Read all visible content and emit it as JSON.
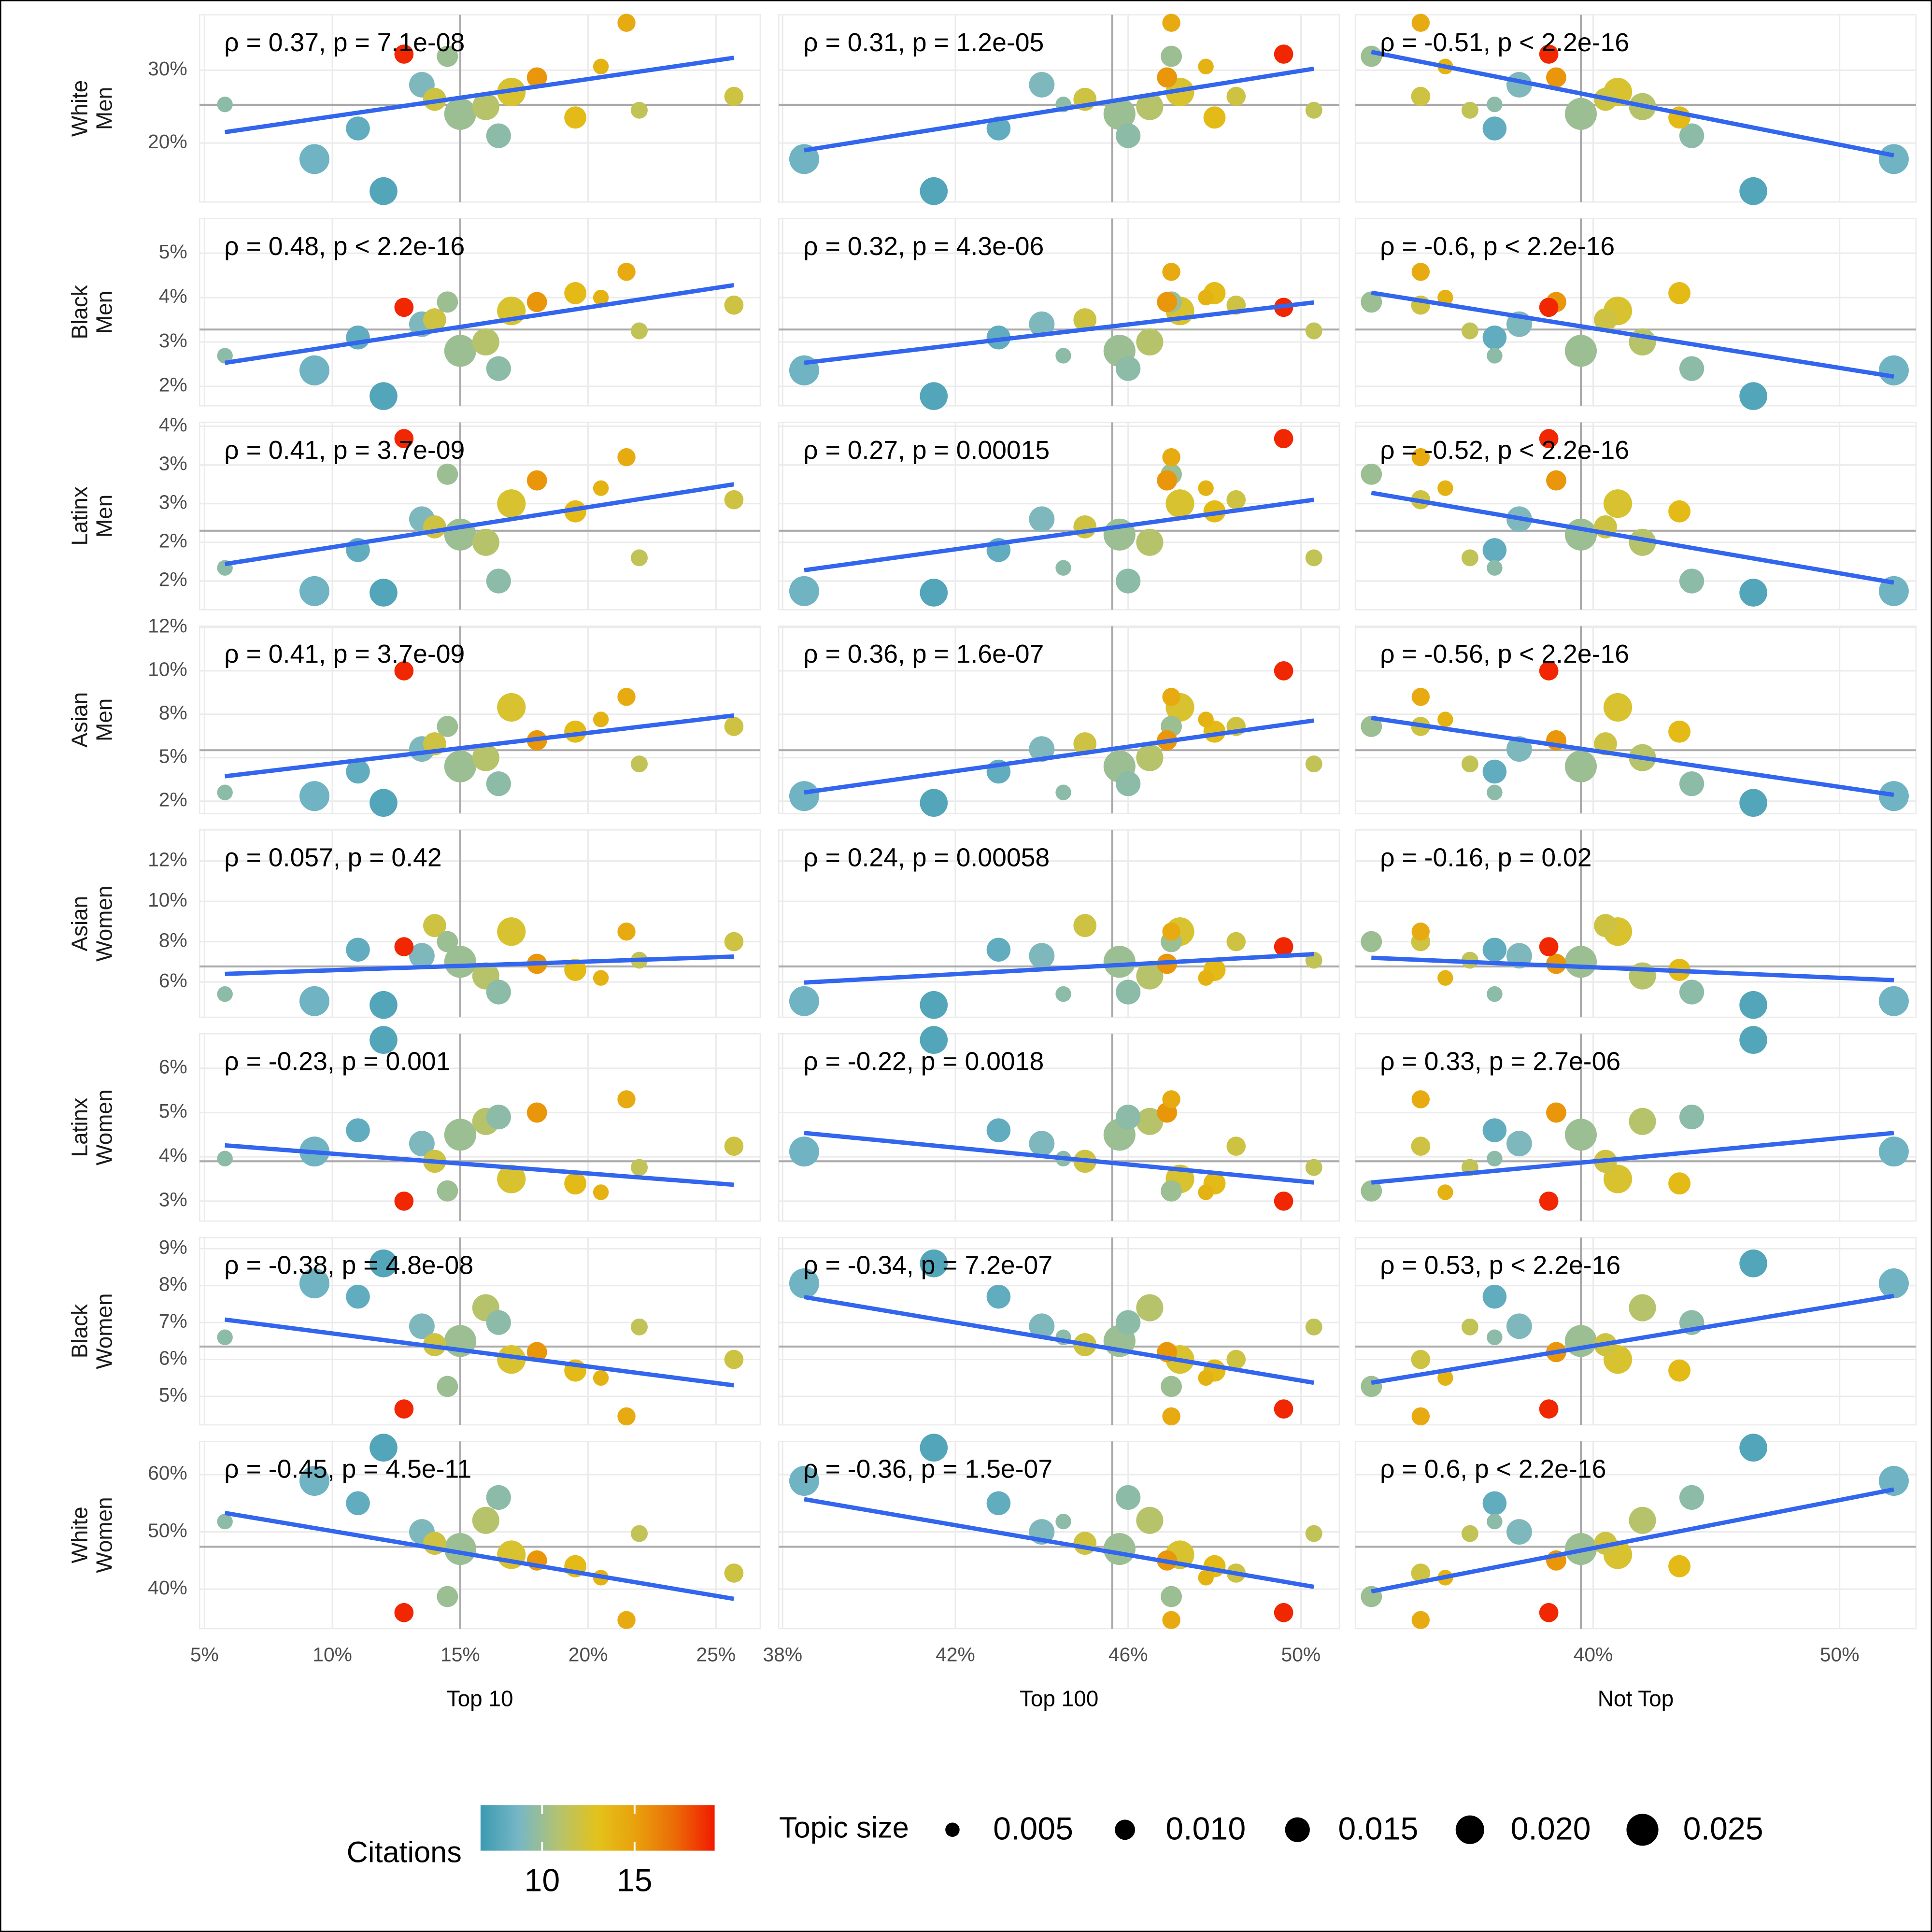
{
  "chart_data": {
    "type": "scatter",
    "columns": [
      {
        "name": "Top 10",
        "xlim": [
          4.81,
          26.73
        ],
        "mean": 15.0,
        "xticks": [
          {
            "value": 5,
            "label": "5%"
          },
          {
            "value": 10,
            "label": "10%"
          },
          {
            "value": 15,
            "label": "15%"
          },
          {
            "value": 20,
            "label": "20%"
          },
          {
            "value": 25,
            "label": "25%"
          }
        ],
        "x": [
          9.3,
          12.8,
          5.8,
          25.7,
          22.0,
          14.5,
          12.0,
          21.5,
          15.0,
          17.0,
          13.5,
          16.0,
          19.5,
          11.0,
          18.0,
          14.0,
          20.5,
          16.5
        ]
      },
      {
        "name": "Top 100",
        "xlim": [
          37.91,
          50.89
        ],
        "mean": 45.63,
        "xticks": [
          {
            "value": 38,
            "label": "38%"
          },
          {
            "value": 42,
            "label": "42%"
          },
          {
            "value": 46,
            "label": "46%"
          },
          {
            "value": 50,
            "label": "50%"
          }
        ],
        "x": [
          38.5,
          49.6,
          44.5,
          48.5,
          50.3,
          47.0,
          41.5,
          47.0,
          45.8,
          47.2,
          44.0,
          46.5,
          48.0,
          43.0,
          46.9,
          45.0,
          47.8,
          46.0
        ]
      },
      {
        "name": "Not Top",
        "xlim": [
          30.35,
          53.1
        ],
        "mean": 39.5,
        "xticks": [
          {
            "value": 40,
            "label": "40%"
          },
          {
            "value": 50,
            "label": "50%"
          }
        ],
        "x": [
          52.2,
          38.2,
          36.0,
          33.0,
          35.0,
          31.0,
          46.5,
          33.0,
          39.5,
          41.0,
          37.0,
          42.0,
          43.5,
          36.0,
          38.5,
          40.5,
          34.0,
          44.0
        ]
      }
    ],
    "rows": [
      {
        "name": "White Men",
        "ylim": [
          11.9,
          37.6
        ],
        "mean": 25.25,
        "yticks": [
          {
            "value": 20,
            "label": "20%"
          },
          {
            "value": 30,
            "label": "30%"
          }
        ],
        "values": [
          17.8,
          32.2,
          25.3,
          26.4,
          24.5,
          31.9,
          13.4,
          36.5,
          24,
          27,
          28,
          25,
          23.5,
          22,
          29,
          26,
          30.5,
          21
        ],
        "panels": [
          {
            "annotation": "ρ = 0.37, p = 7.1e-08",
            "fit": [
              21.5,
              31.7
            ]
          },
          {
            "annotation": "ρ = 0.31, p = 1.2e-05",
            "fit": [
              19.0,
              30.2
            ]
          },
          {
            "annotation": "ρ = -0.51, p < 2.2e-16",
            "fit": [
              32.5,
              18.3
            ]
          }
        ]
      },
      {
        "name": "Black Men",
        "ylim": [
          1.56,
          5.78
        ],
        "mean": 3.28,
        "yticks": [
          {
            "value": 2,
            "label": "2%"
          },
          {
            "value": 3,
            "label": "3%"
          },
          {
            "value": 4,
            "label": "4%"
          },
          {
            "value": 5,
            "label": "5%"
          }
        ],
        "values": [
          2.36,
          3.78,
          2.69,
          3.83,
          3.25,
          3.9,
          1.78,
          4.58,
          2.8,
          3.7,
          3.4,
          3.0,
          4.1,
          3.1,
          3.9,
          3.5,
          4.0,
          2.4
        ],
        "panels": [
          {
            "annotation": "ρ = 0.48, p < 2.2e-16",
            "fit": [
              2.53,
              4.28
            ]
          },
          {
            "annotation": "ρ = 0.32, p = 4.3e-06",
            "fit": [
              2.53,
              3.89
            ]
          },
          {
            "annotation": "ρ = -0.6, p < 2.2e-16",
            "fit": [
              4.11,
              2.22
            ]
          }
        ]
      },
      {
        "name": "Latinx Men",
        "ylim": [
          1.13,
          3.55
        ],
        "mean": 2.15,
        "yticks": [
          {
            "value": 1.5,
            "label": "2%"
          },
          {
            "value": 2.0,
            "label": "2%"
          },
          {
            "value": 2.5,
            "label": "3%"
          },
          {
            "value": 3.0,
            "label": "3%"
          },
          {
            "value": 3.5,
            "label": "4%"
          }
        ],
        "values": [
          1.37,
          3.34,
          1.67,
          2.55,
          1.8,
          2.88,
          1.35,
          3.1,
          2.1,
          2.5,
          2.3,
          2.0,
          2.4,
          1.9,
          2.8,
          2.2,
          2.7,
          1.5
        ],
        "panels": [
          {
            "annotation": "ρ = 0.41, p = 3.7e-09",
            "fit": [
              1.72,
              2.75
            ]
          },
          {
            "annotation": "ρ = 0.27, p = 0.00015",
            "fit": [
              1.64,
              2.55
            ]
          },
          {
            "annotation": "ρ = -0.52, p < 2.2e-16",
            "fit": [
              2.64,
              1.48
            ]
          }
        ]
      },
      {
        "name": "Asian Men",
        "ylim": [
          1.79,
          12.57
        ],
        "mean": 5.43,
        "yticks": [
          {
            "value": 2.5,
            "label": "2%"
          },
          {
            "value": 5,
            "label": "5%"
          },
          {
            "value": 7.5,
            "label": "8%"
          },
          {
            "value": 10,
            "label": "10%"
          },
          {
            "value": 12.5,
            "label": "12%"
          }
        ],
        "values": [
          2.79,
          10,
          3.0,
          6.8,
          4.64,
          6.8,
          2.4,
          8.5,
          4.5,
          7.9,
          5.5,
          5.0,
          6.5,
          4.2,
          6.0,
          5.8,
          7.2,
          3.5
        ],
        "panels": [
          {
            "annotation": "ρ = 0.41, p = 3.7e-09",
            "fit": [
              3.93,
              7.43
            ]
          },
          {
            "annotation": "ρ = 0.36, p = 1.6e-07",
            "fit": [
              3.0,
              7.14
            ]
          },
          {
            "annotation": "ρ = -0.56, p < 2.2e-16",
            "fit": [
              7.29,
              2.86
            ]
          }
        ]
      },
      {
        "name": "Asian Women",
        "ylim": [
          4.25,
          13.54
        ],
        "mean": 6.77,
        "yticks": [
          {
            "value": 6,
            "label": "6%"
          },
          {
            "value": 8,
            "label": "8%"
          },
          {
            "value": 10,
            "label": "10%"
          },
          {
            "value": 12,
            "label": "12%"
          }
        ],
        "values": [
          5.05,
          7.75,
          5.4,
          8.0,
          7.08,
          8.0,
          4.86,
          8.5,
          7.0,
          8.5,
          7.3,
          6.3,
          6.6,
          7.6,
          6.9,
          8.8,
          6.2,
          5.5
        ],
        "panels": [
          {
            "annotation": "ρ = 0.057, p = 0.42",
            "fit": [
              6.4,
              7.26
            ]
          },
          {
            "annotation": "ρ = 0.24, p = 0.00058",
            "fit": [
              5.97,
              7.38
            ]
          },
          {
            "annotation": "ρ = -0.16, p = 0.02",
            "fit": [
              7.2,
              6.09
            ]
          }
        ]
      },
      {
        "name": "Latinx Women",
        "ylim": [
          2.55,
          6.78
        ],
        "mean": 3.9,
        "yticks": [
          {
            "value": 3,
            "label": "3%"
          },
          {
            "value": 4,
            "label": "4%"
          },
          {
            "value": 5,
            "label": "5%"
          },
          {
            "value": 6,
            "label": "6%"
          }
        ],
        "values": [
          4.12,
          3.0,
          3.96,
          4.24,
          3.76,
          3.23,
          6.64,
          5.3,
          4.5,
          3.5,
          4.3,
          4.8,
          3.4,
          4.6,
          5.0,
          3.9,
          3.2,
          4.9
        ],
        "panels": [
          {
            "annotation": "ρ = -0.23, p = 0.001",
            "fit": [
              4.26,
              3.37
            ]
          },
          {
            "annotation": "ρ = -0.22, p = 0.0018",
            "fit": [
              4.54,
              3.42
            ]
          },
          {
            "annotation": "ρ = 0.33, p = 2.7e-06",
            "fit": [
              3.42,
              4.54
            ]
          }
        ]
      },
      {
        "name": "Black Women",
        "ylim": [
          4.23,
          9.3
        ],
        "mean": 6.35,
        "yticks": [
          {
            "value": 5,
            "label": "5%"
          },
          {
            "value": 6,
            "label": "6%"
          },
          {
            "value": 7,
            "label": "7%"
          },
          {
            "value": 8,
            "label": "8%"
          },
          {
            "value": 9,
            "label": "9%"
          }
        ],
        "values": [
          8.06,
          4.66,
          6.6,
          6.0,
          6.88,
          5.27,
          8.6,
          4.46,
          6.5,
          6.0,
          6.9,
          7.4,
          5.7,
          7.7,
          6.2,
          6.4,
          5.5,
          7.0
        ],
        "panels": [
          {
            "annotation": "ρ = -0.38, p = 4.8e-08",
            "fit": [
              7.08,
              5.3
            ]
          },
          {
            "annotation": "ρ = -0.34, p = 7.2e-07",
            "fit": [
              7.69,
              5.37
            ]
          },
          {
            "annotation": "ρ = 0.53, p < 2.2e-16",
            "fit": [
              5.37,
              7.72
            ]
          }
        ]
      },
      {
        "name": "White Women",
        "ylim": [
          33.1,
          65.8
        ],
        "mean": 47.4,
        "yticks": [
          {
            "value": 40,
            "label": "40%"
          },
          {
            "value": 50,
            "label": "50%"
          },
          {
            "value": 60,
            "label": "60%"
          }
        ],
        "values": [
          58.9,
          35.9,
          51.8,
          42.8,
          49.7,
          38.7,
          64.7,
          34.6,
          47,
          46,
          50,
          52,
          44,
          55,
          45,
          48,
          42,
          56
        ],
        "panels": [
          {
            "annotation": "ρ = -0.45, p = 4.5e-11",
            "fit": [
              53.3,
              38.3
            ]
          },
          {
            "annotation": "ρ = -0.36, p = 1.5e-07",
            "fit": [
              55.7,
              40.4
            ]
          },
          {
            "annotation": "ρ = 0.6, p < 2.2e-16",
            "fit": [
              39.6,
              57.4
            ]
          }
        ]
      }
    ],
    "size": [
      0.022,
      0.009,
      0.006,
      0.009,
      0.007,
      0.011,
      0.019,
      0.008,
      0.025,
      0.02,
      0.016,
      0.018,
      0.012,
      0.014,
      0.01,
      0.013,
      0.006,
      0.015
    ],
    "citations": [
      8.5,
      19,
      9.5,
      12,
      11.5,
      10,
      7.5,
      14.5,
      10,
      12.5,
      9,
      11,
      13.5,
      8,
      15.5,
      12,
      14,
      9.5
    ],
    "fit_color": "#3366ee",
    "mean_line_color": "#aaaaaa",
    "grid": true,
    "color_legend": {
      "title": "Citations",
      "limits": [
        6.67,
        19.33
      ],
      "ticks": [
        10,
        15
      ],
      "colors": [
        "#3b9ab2",
        "#78b7c5",
        "#b4c36e",
        "#e3c21b",
        "#e8a00c",
        "#eb6a07",
        "#f21a00"
      ]
    },
    "size_legend": {
      "title": "Topic size",
      "values": [
        0.005,
        {
          "value": 0.01,
          "label": "0.010"
        },
        0.015,
        {
          "value": 0.02,
          "label": "0.020"
        },
        0.025
      ]
    }
  }
}
